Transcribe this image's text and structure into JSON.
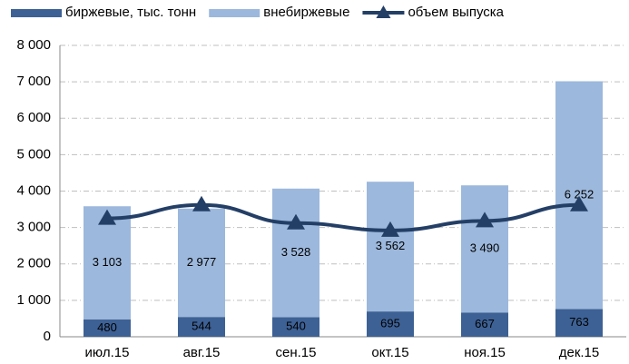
{
  "chart_data": {
    "type": "stacked-bar-line",
    "categories": [
      "июл.15",
      "авг.15",
      "сен.15",
      "окт.15",
      "ноя.15",
      "дек.15"
    ],
    "series": [
      {
        "name": "биржевые, тыс. тонн",
        "color": "#3d6195",
        "type": "bar",
        "values": [
          480,
          544,
          540,
          695,
          667,
          763
        ]
      },
      {
        "name": "внебиржевые",
        "color": "#9cb8dc",
        "type": "bar",
        "values": [
          3103,
          2977,
          3528,
          3562,
          3490,
          6252
        ],
        "value_labels": [
          "3 103",
          "2 977",
          "3 528",
          "3 562",
          "3 490",
          "6 252"
        ]
      },
      {
        "name": "объем выпуска",
        "color": "#243f66",
        "type": "line",
        "values": [
          3250,
          3620,
          3120,
          2920,
          3180,
          3620
        ]
      }
    ],
    "ylim": [
      0,
      8000
    ],
    "yticks": [
      0,
      {
        "value": 1000,
        "label": "1 000"
      },
      {
        "value": 2000,
        "label": "2 000"
      },
      {
        "value": 3000,
        "label": "3 000"
      },
      {
        "value": 4000,
        "label": "4 000"
      },
      {
        "value": 5000,
        "label": "5 000"
      },
      {
        "value": 6000,
        "label": "6 000"
      },
      {
        "value": 7000,
        "label": "7 000"
      },
      {
        "value": 8000,
        "label": "8 000"
      }
    ],
    "grid": true,
    "legend": "top"
  }
}
